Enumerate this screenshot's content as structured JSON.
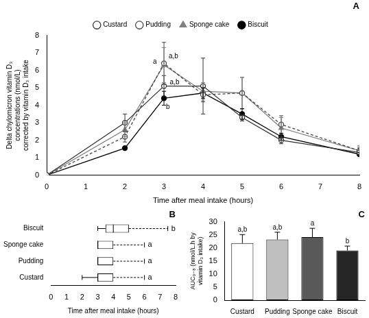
{
  "chart_data": [
    {
      "type": "line",
      "title": "A",
      "x_label": "Time after meal intake (hours)",
      "y_label": "Delta chylomicron vitamin D₃ concentrations (nmol/L) corrected by vitamin D₃ intake",
      "x": [
        0,
        2,
        3,
        4,
        5,
        6,
        8
      ],
      "series": [
        {
          "name": "Custard",
          "color": "#333333",
          "marker": "circle-open",
          "line_style": "solid",
          "values": [
            0,
            3.0,
            5.1,
            5.1,
            3.3,
            2.0,
            1.3
          ],
          "errors": [
            0,
            0.5,
            0.6,
            1.6,
            0.2,
            0.2,
            0.2
          ]
        },
        {
          "name": "Pudding",
          "color": "#444444",
          "marker": "circle-open",
          "line_style": "dashed",
          "values": [
            0,
            2.2,
            6.4,
            4.6,
            4.7,
            2.9,
            1.4
          ],
          "errors": [
            0,
            0.3,
            1.2,
            0.4,
            0.9,
            0.5,
            0.2
          ]
        },
        {
          "name": "Sponge cake",
          "color": "#808080",
          "marker": "triangle",
          "line_style": "solid",
          "values": [
            0,
            2.6,
            6.3,
            4.8,
            4.7,
            2.7,
            1.4
          ],
          "errors": [
            0,
            0.4,
            1.0,
            0.5,
            0.9,
            0.6,
            0.3
          ]
        },
        {
          "name": "Biscuit",
          "color": "#000000",
          "marker": "circle",
          "line_style": "solid",
          "values": [
            0,
            1.55,
            4.4,
            4.7,
            3.5,
            2.2,
            1.2
          ],
          "errors": [
            0,
            0.1,
            0.4,
            0.3,
            0.3,
            0.2,
            0.1
          ]
        }
      ],
      "annotations": [
        {
          "x": 2.72,
          "y": 6.5,
          "text": "a"
        },
        {
          "x": 3.12,
          "y": 6.8,
          "text": "a,b"
        },
        {
          "x": 3.15,
          "y": 5.3,
          "text": "a,b"
        },
        {
          "x": 3.05,
          "y": 3.9,
          "text": "b"
        }
      ],
      "xlim": [
        0,
        8
      ],
      "xticks": [
        0,
        1,
        2,
        3,
        4,
        5,
        6,
        7,
        8
      ],
      "ylim": [
        0,
        8
      ],
      "yticks": [
        0,
        1,
        2,
        3,
        4,
        5,
        6,
        7,
        8
      ],
      "grid": false,
      "legend": "top"
    },
    {
      "type": "boxplot",
      "title": "B",
      "orientation": "horizontal",
      "x_label": "Time after meal intake (hours)",
      "categories": [
        "Biscuit",
        "Sponge cake",
        "Pudding",
        "Custard"
      ],
      "boxes": [
        {
          "min": 3,
          "q1": 3.5,
          "median": 4,
          "q3": 5,
          "max": 7.5
        },
        {
          "min": 3,
          "q1": 3,
          "median": 3,
          "q3": 4,
          "max": 6
        },
        {
          "min": 3,
          "q1": 3,
          "median": 3,
          "q3": 4,
          "max": 6
        },
        {
          "min": 2,
          "q1": 3,
          "median": 3,
          "q3": 4,
          "max": 6
        }
      ],
      "letters": [
        "b",
        "a",
        "a",
        "a"
      ],
      "xlim": [
        0,
        8
      ],
      "xticks": [
        0,
        1,
        2,
        3,
        4,
        5,
        6,
        7,
        8
      ],
      "grid": false
    },
    {
      "type": "bar",
      "title": "C",
      "y_label": "AUC₀₋₈ (nmol/L.h by vitamin D₃ intake)",
      "categories": [
        "Custard",
        "Pudding",
        "Sponge cake",
        "Biscuit"
      ],
      "values": [
        21.8,
        23.2,
        24.1,
        19.0
      ],
      "errors": [
        3.3,
        2.8,
        3.4,
        1.7
      ],
      "letters": [
        "a,b",
        "a,b",
        "a",
        "b"
      ],
      "colors": [
        "#ffffff",
        "#bfbfbf",
        "#595959",
        "#262626"
      ],
      "ylim": [
        0,
        30
      ],
      "yticks": [
        0,
        5,
        10,
        15,
        20,
        25,
        30
      ],
      "grid": false
    }
  ]
}
